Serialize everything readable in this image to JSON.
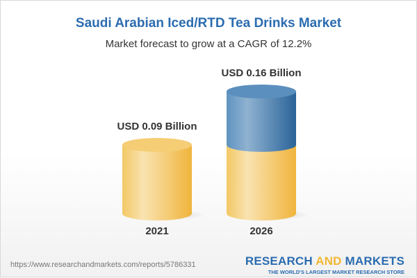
{
  "header": {
    "title": "Saudi Arabian Iced/RTD Tea Drinks Market",
    "subtitle": "Market forecast to grow at a CAGR of 12.2%"
  },
  "chart_data": {
    "type": "bar",
    "style": "3d-cylinder",
    "categories": [
      "2021",
      "2026"
    ],
    "values": [
      0.09,
      0.16
    ],
    "data_labels": [
      "USD 0.09 Billion",
      "USD 0.16 Billion"
    ],
    "unit": "USD Billion",
    "colors": {
      "base": "#f2c35a",
      "growth": "#3d78ad"
    },
    "grid": false
  },
  "footer": {
    "url": "https://www.researchandmarkets.com/reports/5786331",
    "logo_part1": "RESEARCH ",
    "logo_part2": "AND",
    "logo_part3": " MARKETS",
    "logo_tagline": "THE WORLD'S LARGEST MARKET RESEARCH STORE"
  }
}
